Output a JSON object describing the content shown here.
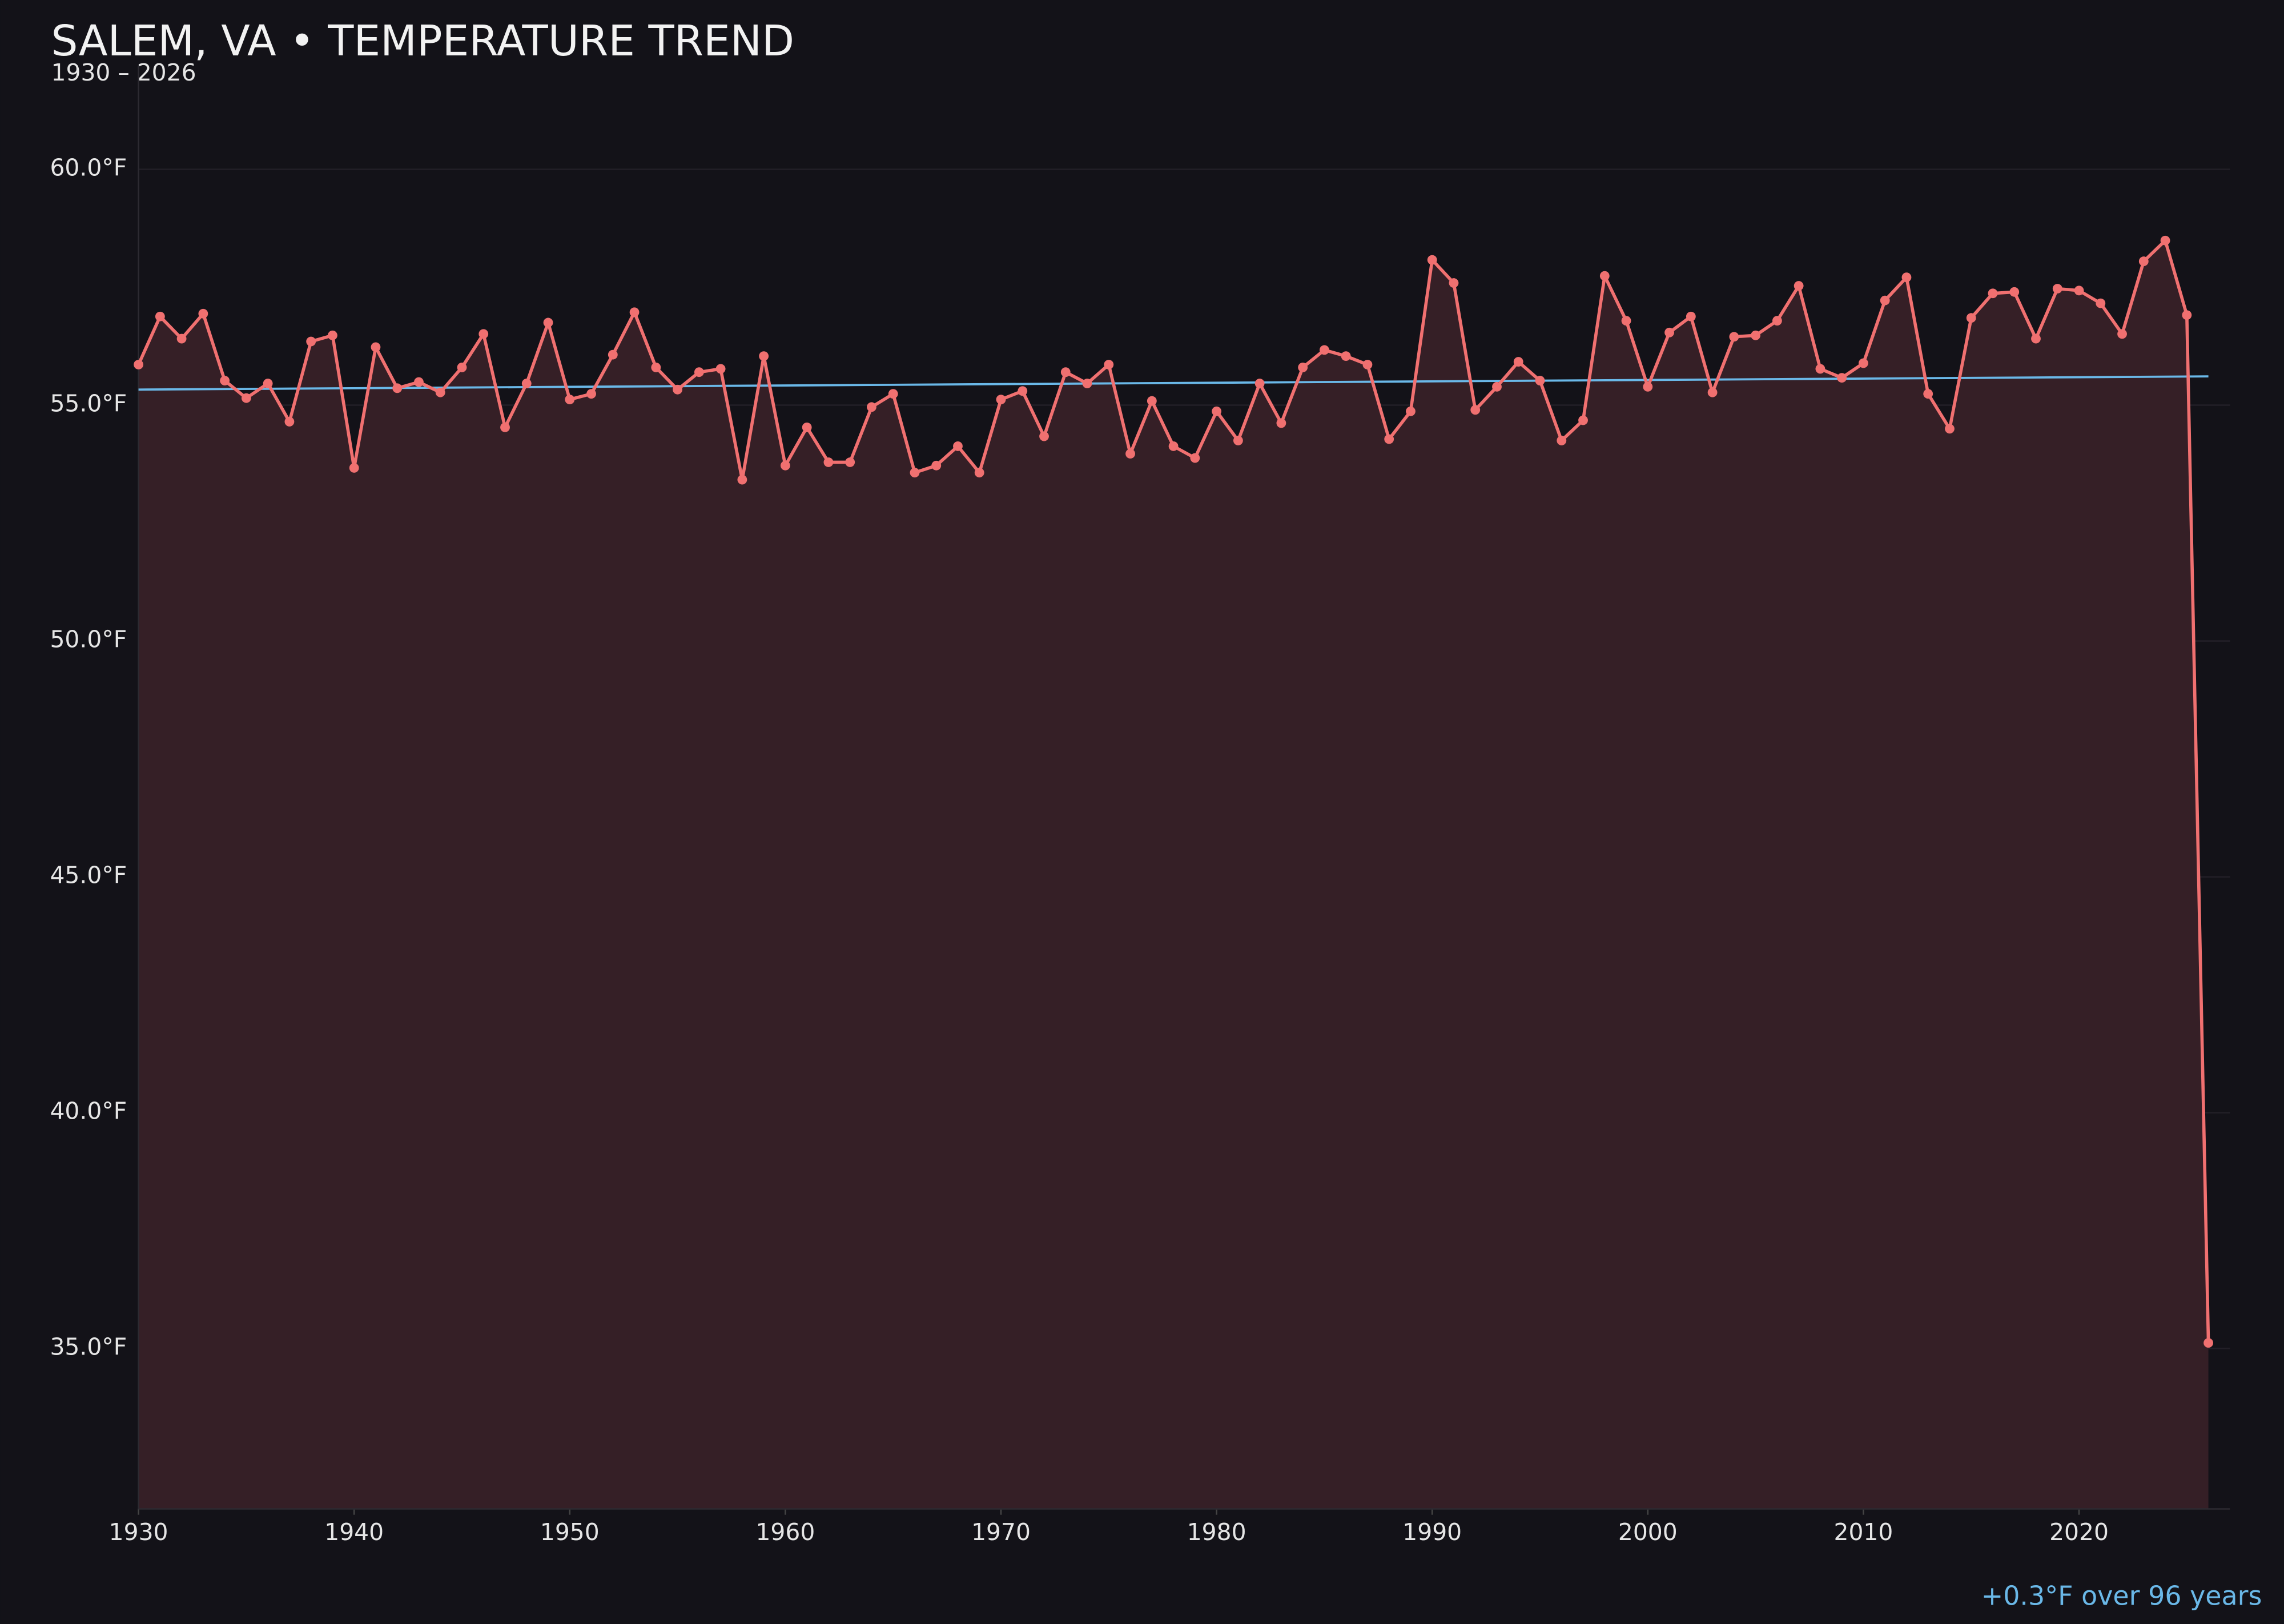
{
  "chart_data": {
    "type": "line",
    "title": "SALEM, VA • TEMPERATURE TREND",
    "subtitle": "1930 – 2026",
    "annotation": "+0.3°F over 96 years",
    "x": [
      1930,
      1931,
      1932,
      1933,
      1934,
      1935,
      1936,
      1937,
      1938,
      1939,
      1940,
      1941,
      1942,
      1943,
      1944,
      1945,
      1946,
      1947,
      1948,
      1949,
      1950,
      1951,
      1952,
      1953,
      1954,
      1955,
      1956,
      1957,
      1958,
      1959,
      1960,
      1961,
      1962,
      1963,
      1964,
      1965,
      1966,
      1967,
      1968,
      1969,
      1970,
      1971,
      1972,
      1973,
      1974,
      1975,
      1976,
      1977,
      1978,
      1979,
      1980,
      1981,
      1982,
      1983,
      1984,
      1985,
      1986,
      1987,
      1988,
      1989,
      1990,
      1991,
      1992,
      1993,
      1994,
      1995,
      1996,
      1997,
      1998,
      1999,
      2000,
      2001,
      2002,
      2003,
      2004,
      2005,
      2006,
      2007,
      2008,
      2009,
      2010,
      2011,
      2012,
      2013,
      2014,
      2015,
      2016,
      2017,
      2018,
      2019,
      2020,
      2021,
      2022,
      2023,
      2024,
      2025,
      2026
    ],
    "values": [
      55.86,
      56.88,
      56.41,
      56.94,
      55.52,
      55.15,
      55.46,
      54.65,
      56.35,
      56.48,
      53.67,
      56.23,
      55.36,
      55.49,
      55.27,
      55.8,
      56.51,
      54.53,
      55.46,
      56.75,
      55.12,
      55.24,
      56.07,
      56.97,
      55.8,
      55.33,
      55.7,
      55.77,
      53.42,
      56.04,
      53.72,
      54.53,
      53.79,
      53.79,
      54.96,
      55.24,
      53.57,
      53.72,
      54.13,
      53.57,
      55.12,
      55.3,
      54.34,
      55.7,
      55.46,
      55.86,
      53.97,
      55.09,
      54.13,
      53.88,
      54.87,
      54.25,
      55.46,
      54.62,
      55.8,
      56.17,
      56.04,
      55.86,
      54.28,
      54.87,
      58.08,
      57.59,
      54.9,
      55.39,
      55.92,
      55.52,
      54.25,
      54.68,
      57.74,
      56.79,
      55.39,
      56.54,
      56.88,
      55.27,
      56.45,
      56.48,
      56.79,
      57.53,
      55.77,
      55.58,
      55.89,
      57.22,
      57.71,
      55.24,
      54.5,
      56.85,
      57.37,
      57.4,
      56.41,
      57.47,
      57.43,
      57.16,
      56.51,
      58.05,
      58.49,
      56.91,
      35.12
    ],
    "color": "#f07070",
    "area_color": "#351f26",
    "trend": {
      "x": [
        1930,
        2026
      ],
      "values": [
        55.33,
        55.61
      ],
      "color": "#6ab8e8"
    },
    "xlim": [
      1930,
      2027
    ],
    "ylim": [
      31.6,
      62.2
    ],
    "xticks": [
      1930,
      1940,
      1950,
      1960,
      1970,
      1980,
      1990,
      2000,
      2010,
      2020
    ],
    "yticks": [
      {
        "value": 35,
        "label": "35.0°F"
      },
      {
        "value": 40,
        "label": "40.0°F"
      },
      {
        "value": 45,
        "label": "45.0°F"
      },
      {
        "value": 50,
        "label": "50.0°F"
      },
      {
        "value": 55,
        "label": "55.0°F"
      },
      {
        "value": 60,
        "label": "60.0°F"
      }
    ],
    "grid": true
  }
}
